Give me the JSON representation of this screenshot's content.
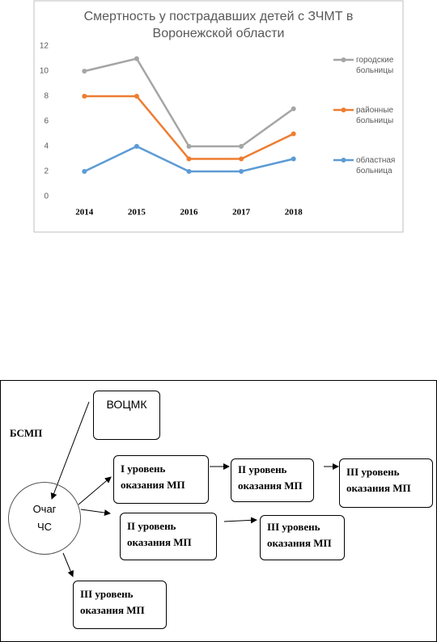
{
  "chart_data": {
    "type": "line",
    "title": "Смертность у пострадавших детей с ЗЧМТ в Воронежской области",
    "categories": [
      "2014",
      "2015",
      "2016",
      "2017",
      "2018"
    ],
    "series": [
      {
        "name": "городские больницы",
        "color": "#a5a5a5",
        "values": [
          10,
          11,
          4,
          4,
          7
        ]
      },
      {
        "name": "районные больницы",
        "color": "#ed7d31",
        "values": [
          8,
          8,
          3,
          3,
          5
        ]
      },
      {
        "name": "областная больница",
        "color": "#5b9bd5",
        "values": [
          2,
          4,
          2,
          2,
          3
        ]
      }
    ],
    "ylim": [
      0,
      12
    ],
    "yticks": [
      0,
      2,
      4,
      6,
      8,
      10,
      12
    ],
    "grid": false,
    "legend": "right"
  },
  "diagram": {
    "side_label": "БСМП",
    "nodes": [
      {
        "lines": [
          "ВОЦМК"
        ]
      },
      {
        "lines": [
          "Очаг",
          "ЧС"
        ]
      },
      {
        "lines": [
          "I уровень",
          "оказания МП"
        ]
      },
      {
        "lines": [
          "II уровень",
          "оказания МП"
        ]
      },
      {
        "lines": [
          "III уровень",
          "оказания МП"
        ]
      },
      {
        "lines": [
          "II уровень",
          "оказания МП"
        ]
      },
      {
        "lines": [
          "III уровень",
          "оказания МП"
        ]
      },
      {
        "lines": [
          "III уровень",
          "оказания МП"
        ]
      }
    ]
  }
}
